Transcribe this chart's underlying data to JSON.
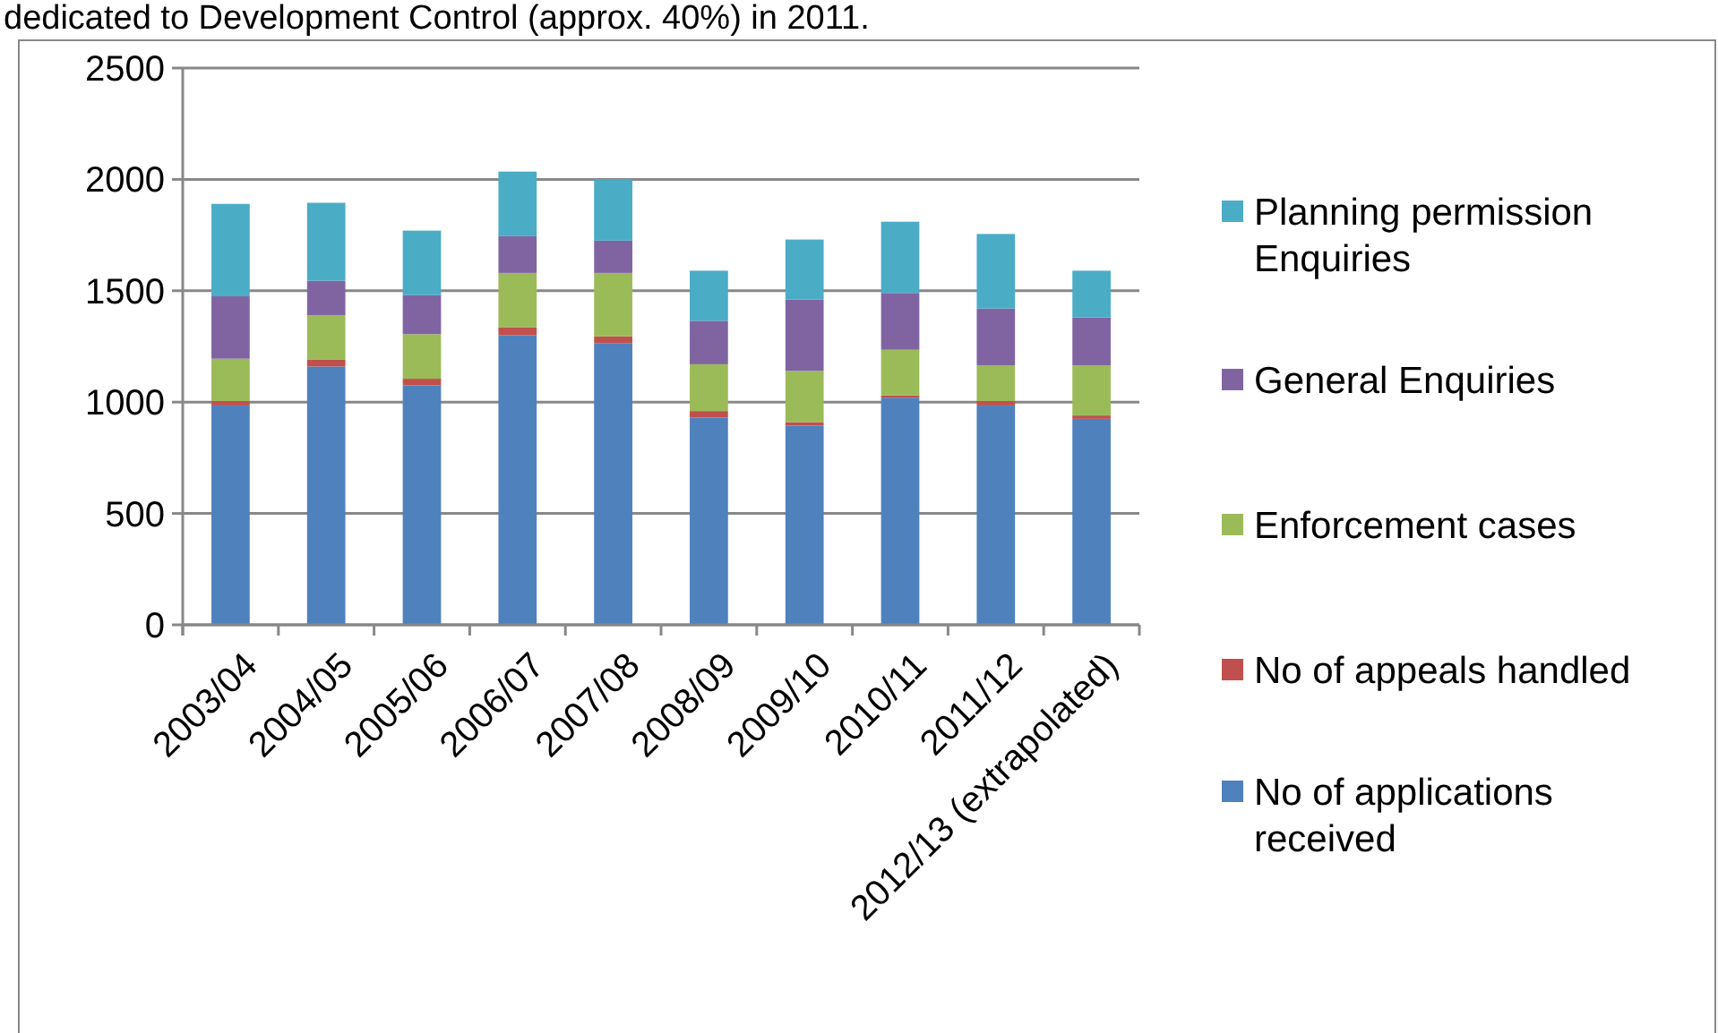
{
  "chart_data": {
    "type": "bar",
    "stacked": true,
    "annotations": [
      "dedicated to Development Control (approx. 40%) in 2011."
    ],
    "categories": [
      "2003/04",
      "2004/05",
      "2005/06",
      "2006/07",
      "2007/08",
      "2008/09",
      "2009/10",
      "2010/11",
      "2011/12",
      "2012/13 (extrapolated)"
    ],
    "series": [
      {
        "name": "No of applications received",
        "color": "#4f81bd",
        "values": [
          985,
          1160,
          1075,
          1300,
          1265,
          930,
          895,
          1020,
          985,
          925
        ]
      },
      {
        "name": "No of appeals handled",
        "color": "#c0504d",
        "values": [
          20,
          30,
          30,
          35,
          30,
          30,
          15,
          10,
          20,
          15
        ]
      },
      {
        "name": "Enforcement cases",
        "color": "#9bbb59",
        "values": [
          190,
          200,
          200,
          245,
          285,
          210,
          230,
          205,
          160,
          225
        ]
      },
      {
        "name": "General Enquiries",
        "color": "#8064a2",
        "values": [
          280,
          155,
          175,
          165,
          145,
          195,
          320,
          255,
          255,
          215
        ]
      },
      {
        "name": "Planning permission Enquiries",
        "color": "#4bacc6",
        "values": [
          415,
          350,
          290,
          290,
          275,
          225,
          270,
          320,
          335,
          210
        ]
      }
    ],
    "ylim": [
      0,
      2500
    ],
    "yticks": [
      0,
      500,
      1000,
      1500,
      2000,
      2500
    ],
    "grid": "y",
    "legend": "right"
  }
}
